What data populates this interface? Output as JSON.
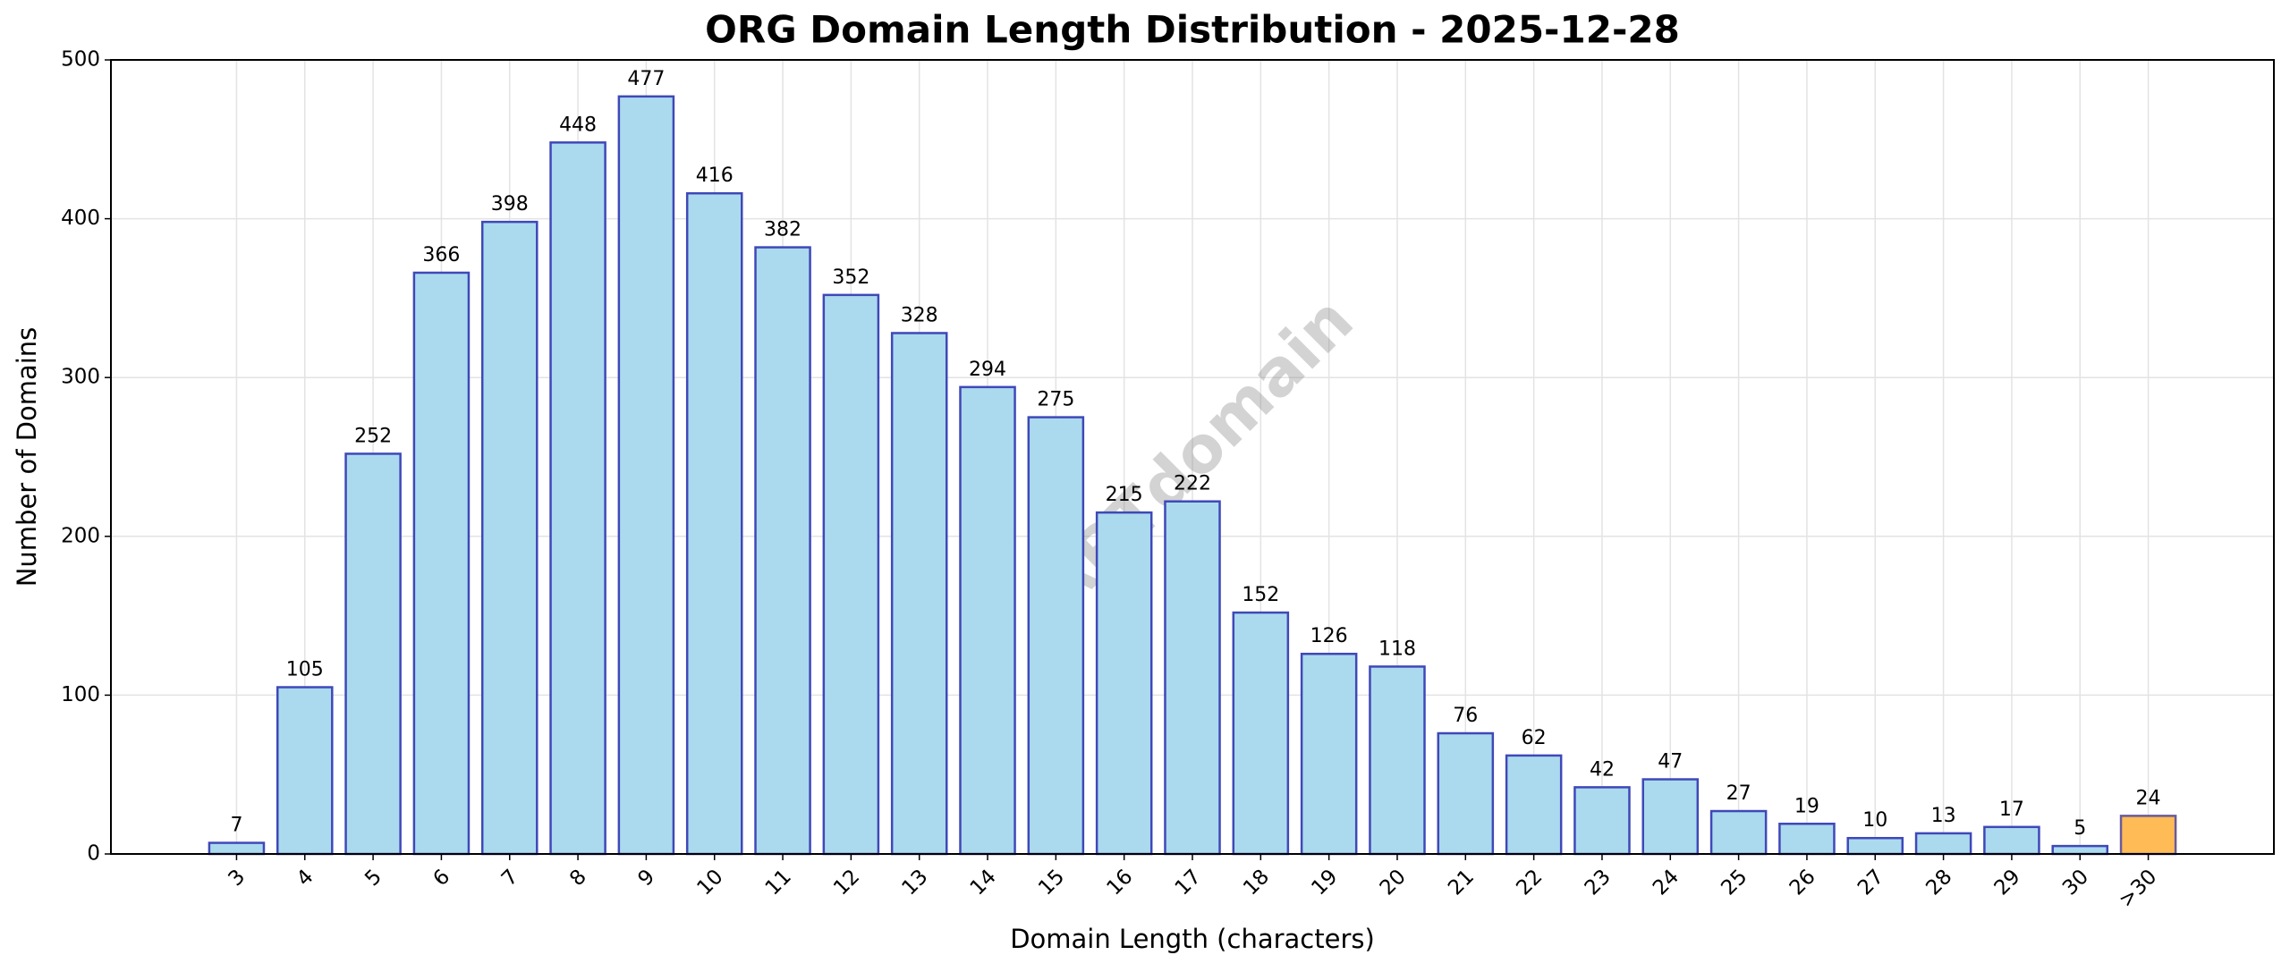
{
  "chart_data": {
    "type": "bar",
    "title": "ORG Domain Length Distribution - 2025-12-28",
    "xlabel": "Domain Length (characters)",
    "ylabel": "Number of Domains",
    "watermark": "ABTdomain",
    "categories": [
      "3",
      "4",
      "5",
      "6",
      "7",
      "8",
      "9",
      "10",
      "11",
      "12",
      "13",
      "14",
      "15",
      "16",
      "17",
      "18",
      "19",
      "20",
      "21",
      "22",
      "23",
      "24",
      "25",
      "26",
      "27",
      "28",
      "29",
      "30",
      ">30"
    ],
    "values": [
      7,
      105,
      252,
      366,
      398,
      448,
      477,
      416,
      382,
      352,
      328,
      294,
      275,
      215,
      222,
      152,
      126,
      118,
      76,
      62,
      42,
      47,
      27,
      19,
      10,
      13,
      17,
      5,
      24
    ],
    "colors": [
      "#abdaee",
      "#abdaee",
      "#abdaee",
      "#abdaee",
      "#abdaee",
      "#abdaee",
      "#abdaee",
      "#abdaee",
      "#abdaee",
      "#abdaee",
      "#abdaee",
      "#abdaee",
      "#abdaee",
      "#abdaee",
      "#abdaee",
      "#abdaee",
      "#abdaee",
      "#abdaee",
      "#abdaee",
      "#abdaee",
      "#abdaee",
      "#abdaee",
      "#abdaee",
      "#abdaee",
      "#abdaee",
      "#abdaee",
      "#abdaee",
      "#abdaee",
      "#ffbb55"
    ],
    "edgecolors": [
      "#3f48b8",
      "#3f48b8",
      "#3f48b8",
      "#3f48b8",
      "#3f48b8",
      "#3f48b8",
      "#3f48b8",
      "#3f48b8",
      "#3f48b8",
      "#3f48b8",
      "#3f48b8",
      "#3f48b8",
      "#3f48b8",
      "#3f48b8",
      "#3f48b8",
      "#3f48b8",
      "#3f48b8",
      "#3f48b8",
      "#3f48b8",
      "#3f48b8",
      "#3f48b8",
      "#3f48b8",
      "#3f48b8",
      "#3f48b8",
      "#3f48b8",
      "#3f48b8",
      "#3f48b8",
      "#3f48b8",
      "#6a5a9a"
    ],
    "ylim": [
      0,
      500
    ],
    "yticks": [
      0,
      100,
      200,
      300,
      400,
      500
    ],
    "grid": true
  }
}
